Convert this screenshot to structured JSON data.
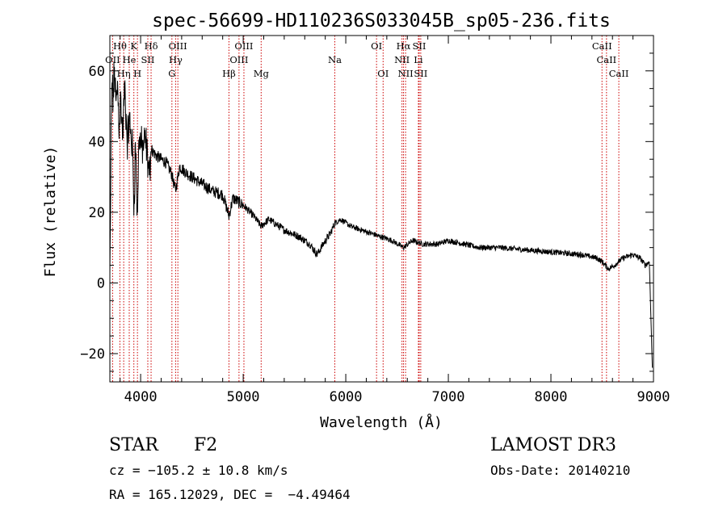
{
  "chart_data": {
    "type": "line",
    "title": "spec-56699-HD110236S033045B_sp05-236.fits",
    "xlabel": "Wavelength (Å)",
    "ylabel": "Flux (relative)",
    "xlim": [
      3700,
      9000
    ],
    "ylim": [
      -28,
      70
    ],
    "x_ticks": [
      4000,
      5000,
      6000,
      7000,
      8000,
      9000
    ],
    "y_ticks": [
      -20,
      0,
      20,
      40,
      60
    ],
    "line_color": "#000000",
    "marker_color": "#cc0000",
    "spectrum_anchors": [
      [
        3700,
        2
      ],
      [
        3705,
        12
      ],
      [
        3712,
        40
      ],
      [
        3720,
        58
      ],
      [
        3730,
        52
      ],
      [
        3745,
        60
      ],
      [
        3760,
        50
      ],
      [
        3775,
        56
      ],
      [
        3790,
        45
      ],
      [
        3805,
        52
      ],
      [
        3825,
        42
      ],
      [
        3845,
        55
      ],
      [
        3870,
        40
      ],
      [
        3890,
        46
      ],
      [
        3920,
        38
      ],
      [
        3935,
        22
      ],
      [
        3950,
        40
      ],
      [
        3968,
        18
      ],
      [
        3985,
        42
      ],
      [
        4010,
        38
      ],
      [
        4050,
        40
      ],
      [
        4085,
        30
      ],
      [
        4100,
        38
      ],
      [
        4150,
        36
      ],
      [
        4200,
        35
      ],
      [
        4250,
        34
      ],
      [
        4300,
        31
      ],
      [
        4340,
        26
      ],
      [
        4380,
        33
      ],
      [
        4450,
        31
      ],
      [
        4500,
        30
      ],
      [
        4600,
        28
      ],
      [
        4700,
        26
      ],
      [
        4800,
        25
      ],
      [
        4861,
        19
      ],
      [
        4900,
        24
      ],
      [
        5000,
        22
      ],
      [
        5100,
        19
      ],
      [
        5175,
        16
      ],
      [
        5250,
        18
      ],
      [
        5400,
        15
      ],
      [
        5550,
        13
      ],
      [
        5650,
        11
      ],
      [
        5720,
        8
      ],
      [
        5780,
        11
      ],
      [
        5850,
        14
      ],
      [
        5893,
        17
      ],
      [
        5950,
        18
      ],
      [
        6050,
        16
      ],
      [
        6150,
        15
      ],
      [
        6250,
        14
      ],
      [
        6350,
        13
      ],
      [
        6450,
        12
      ],
      [
        6563,
        10
      ],
      [
        6650,
        12
      ],
      [
        6750,
        11
      ],
      [
        6900,
        11
      ],
      [
        7000,
        12
      ],
      [
        7150,
        11
      ],
      [
        7300,
        10
      ],
      [
        7500,
        10
      ],
      [
        7700,
        9.5
      ],
      [
        7900,
        9
      ],
      [
        8100,
        8.5
      ],
      [
        8300,
        8
      ],
      [
        8450,
        7
      ],
      [
        8500,
        6
      ],
      [
        8560,
        4
      ],
      [
        8620,
        5
      ],
      [
        8700,
        7
      ],
      [
        8800,
        8
      ],
      [
        8870,
        7
      ],
      [
        8920,
        5
      ],
      [
        8960,
        6
      ],
      [
        8975,
        -10
      ],
      [
        8990,
        -25
      ]
    ],
    "lines": [
      {
        "label": "Hθ",
        "wavelength": 3798,
        "row": 1
      },
      {
        "label": "OII",
        "wavelength": 3727,
        "row": 2
      },
      {
        "label": "Hη",
        "wavelength": 3835,
        "row": 3
      },
      {
        "label": "He",
        "wavelength": 3889,
        "row": 2
      },
      {
        "label": "K",
        "wavelength": 3934,
        "row": 1
      },
      {
        "label": "H",
        "wavelength": 3969,
        "row": 3
      },
      {
        "label": "SII",
        "wavelength": 4070,
        "row": 2
      },
      {
        "label": "Hδ",
        "wavelength": 4102,
        "row": 1
      },
      {
        "label": "OIII",
        "wavelength": 4363,
        "row": 1
      },
      {
        "label": "Hγ",
        "wavelength": 4341,
        "row": 2
      },
      {
        "label": "G",
        "wavelength": 4305,
        "row": 3
      },
      {
        "label": "Hβ",
        "wavelength": 4861,
        "row": 3
      },
      {
        "label": "OIII",
        "wavelength": 5007,
        "row": 1
      },
      {
        "label": "OIII",
        "wavelength": 4959,
        "row": 2
      },
      {
        "label": "Mg",
        "wavelength": 5175,
        "row": 3
      },
      {
        "label": "Na",
        "wavelength": 5893,
        "row": 2
      },
      {
        "label": "OI",
        "wavelength": 6300,
        "row": 1
      },
      {
        "label": "OI",
        "wavelength": 6364,
        "row": 3
      },
      {
        "label": "Hα",
        "wavelength": 6563,
        "row": 1
      },
      {
        "label": "NII",
        "wavelength": 6548,
        "row": 2
      },
      {
        "label": "NII",
        "wavelength": 6583,
        "row": 3
      },
      {
        "label": "SII",
        "wavelength": 6716,
        "row": 1
      },
      {
        "label": "Li",
        "wavelength": 6708,
        "row": 2
      },
      {
        "label": "SII",
        "wavelength": 6731,
        "row": 3
      },
      {
        "label": "CaII",
        "wavelength": 8498,
        "row": 1
      },
      {
        "label": "CaII",
        "wavelength": 8542,
        "row": 2
      },
      {
        "label": "CaII",
        "wavelength": 8662,
        "row": 3
      }
    ]
  },
  "info": {
    "class_label": "STAR",
    "subclass": "F2",
    "survey": "LAMOST DR3",
    "cz": "cz = −105.2 ± 10.8 km/s",
    "obs_date": "Obs-Date: 20140210",
    "radec": "RA = 165.12029, DEC =  −4.49464"
  }
}
